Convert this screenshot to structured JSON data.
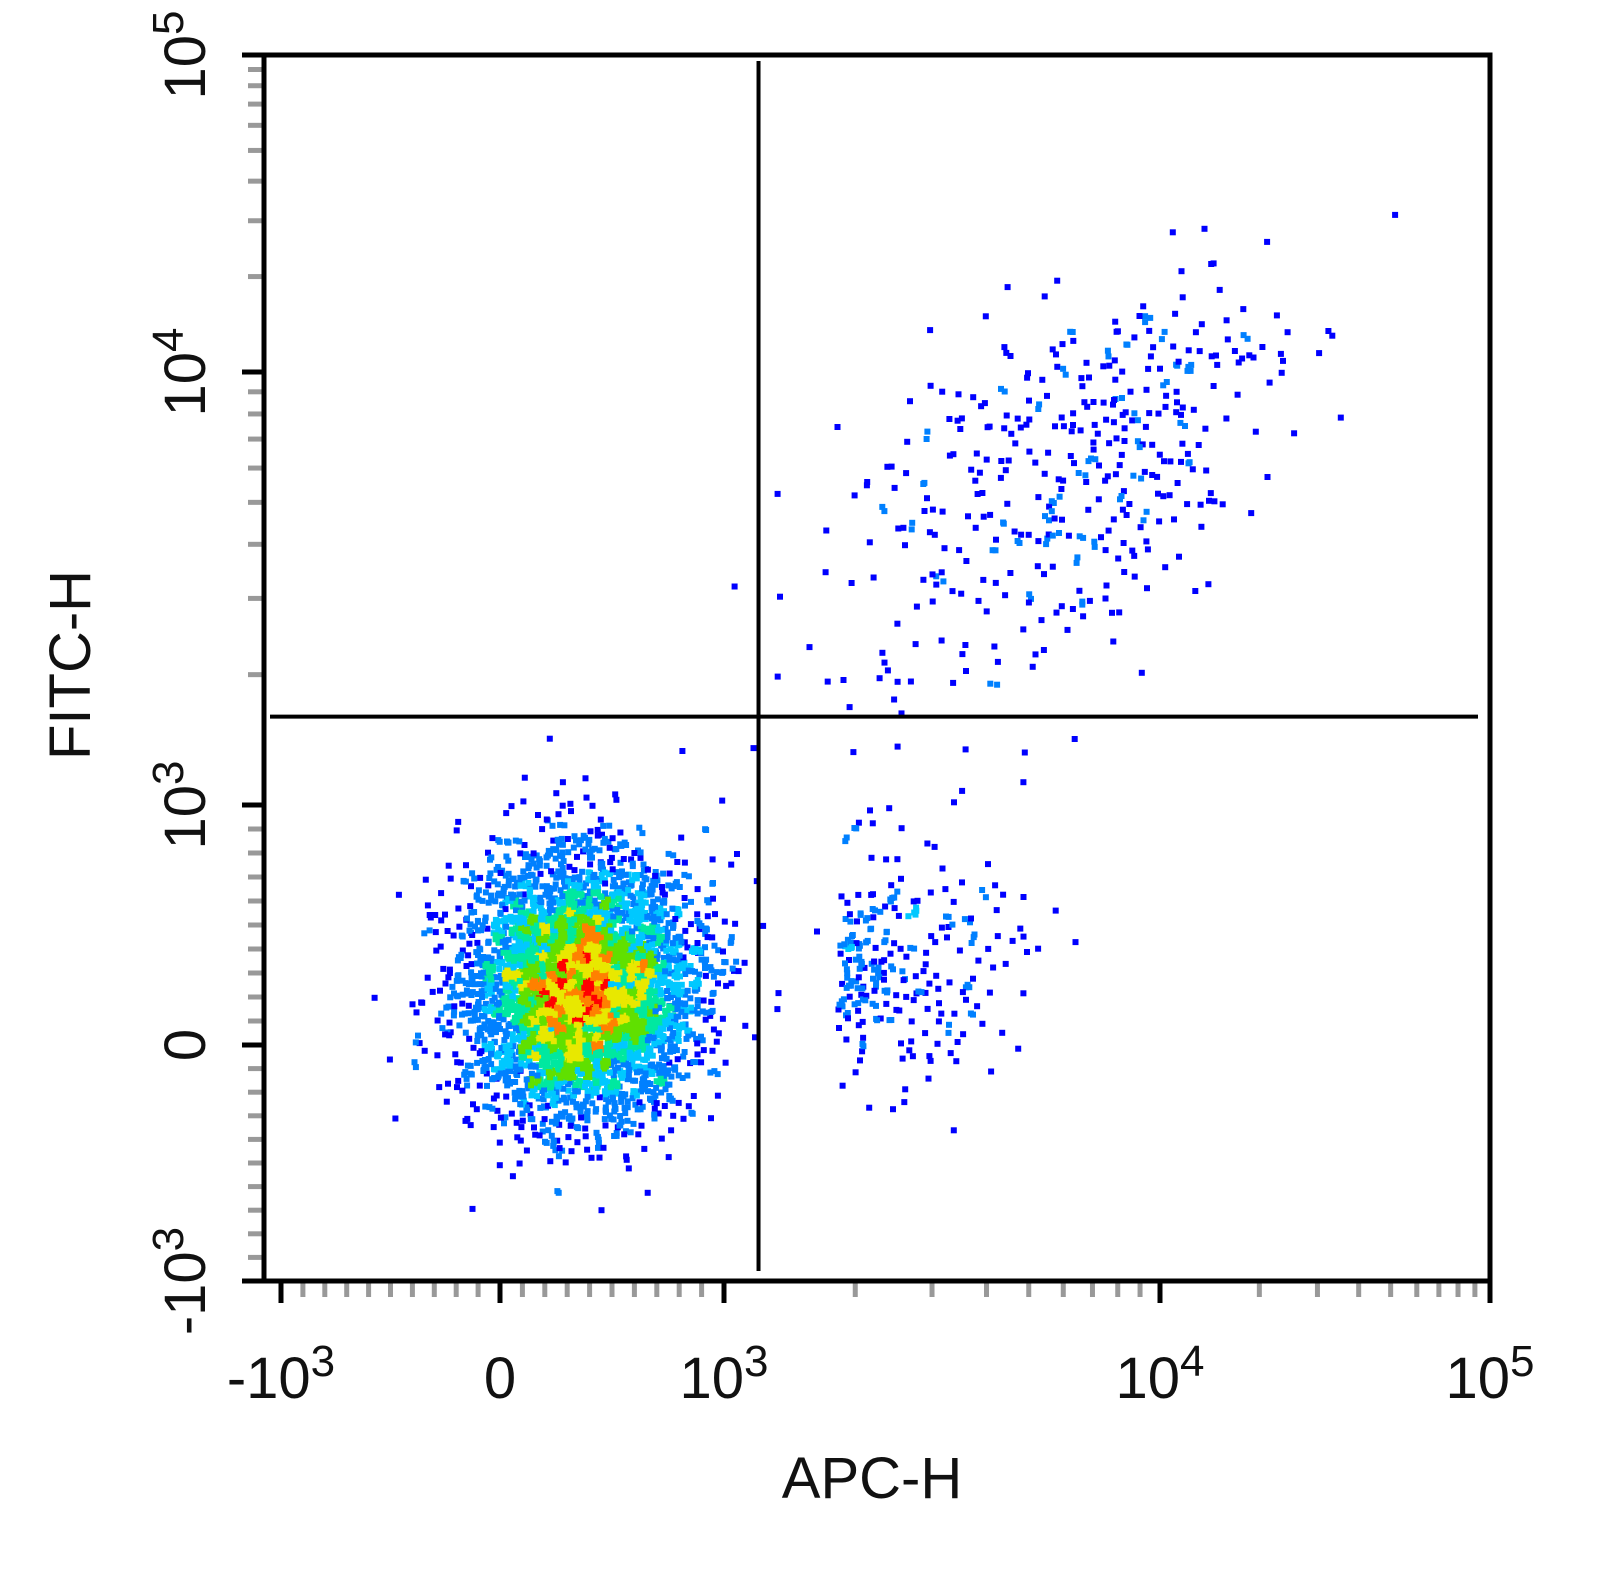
{
  "chart_data": {
    "type": "scatter",
    "subtype": "flow-cytometry-density-dot-plot",
    "title": "",
    "xlabel": "APC-H",
    "ylabel": "FITC-H",
    "x_scale": "biexponential",
    "y_scale": "biexponential",
    "xlim": [
      -1100,
      100000
    ],
    "ylim": [
      -1000,
      100000
    ],
    "x_ticks": [
      {
        "value": -1000,
        "base": "-10",
        "exp": "3"
      },
      {
        "value": 0,
        "base": "0",
        "exp": ""
      },
      {
        "value": 1000,
        "base": "10",
        "exp": "3"
      },
      {
        "value": 10000,
        "base": "10",
        "exp": "4"
      },
      {
        "value": 100000,
        "base": "10",
        "exp": "5"
      }
    ],
    "y_ticks": [
      {
        "value": -1000,
        "base": "-10",
        "exp": "3"
      },
      {
        "value": 0,
        "base": "0",
        "exp": ""
      },
      {
        "value": 1000,
        "base": "10",
        "exp": "3"
      },
      {
        "value": 10000,
        "base": "10",
        "exp": "4"
      },
      {
        "value": 100000,
        "base": "10",
        "exp": "5"
      }
    ],
    "quadrant_gate": {
      "x": 1200,
      "y": 1600
    },
    "populations": [
      {
        "name": "",
        "center": [
          350,
          250
        ],
        "spread": [
          420,
          260
        ],
        "count": 5200,
        "density": "high"
      },
      {
        "name": "",
        "center": [
          6000,
          6000
        ],
        "spread": [
          0.28,
          0.22
        ],
        "count": 420,
        "density": "low"
      },
      {
        "name": "",
        "center": [
          1800,
          350
        ],
        "spread": [
          0.18,
          250
        ],
        "count": 260,
        "density": "low"
      }
    ],
    "density_colors": [
      "#0000ff",
      "#0080ff",
      "#00c8ff",
      "#00e8a0",
      "#60e000",
      "#e8e800",
      "#ff8000",
      "#ff0000"
    ],
    "grid": false,
    "legend": "none"
  }
}
